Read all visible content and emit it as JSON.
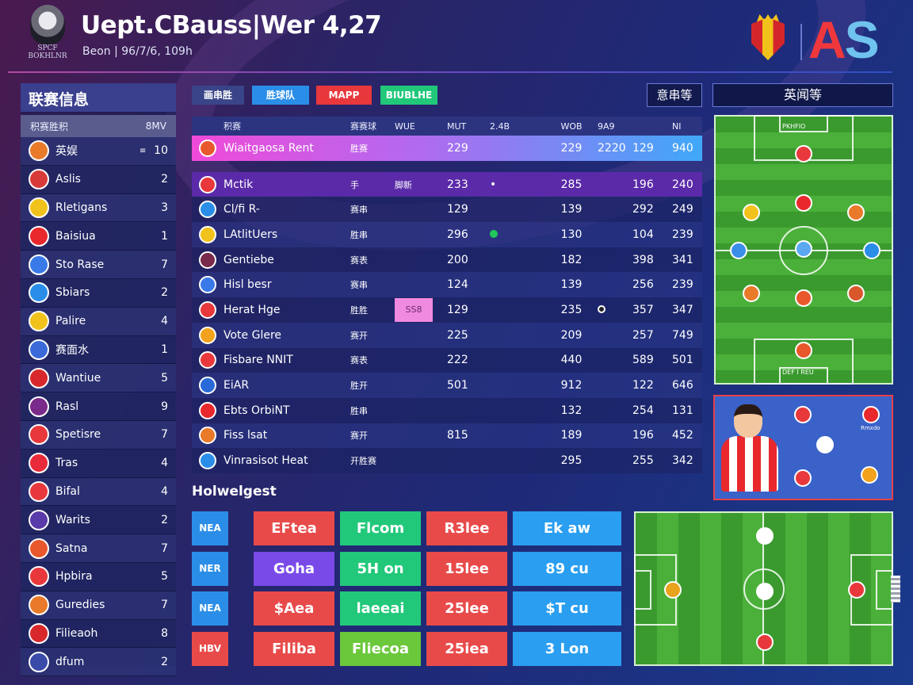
{
  "header": {
    "logo_caption_1": "SPCF",
    "logo_caption_2": "BOKHLNR",
    "title": "Uept.CBauss|Wer 4,27",
    "subtitle": "Beon | 96/7/6, 109h",
    "brand_a": "A",
    "brand_s": "S"
  },
  "left_panel": {
    "title": "联赛信息",
    "head_left": "积赛胜积",
    "head_right": "8MV",
    "rows": [
      {
        "name": "英娱",
        "mark": "≡",
        "pts": "10",
        "color": "#e87a2a"
      },
      {
        "name": "Aslis",
        "mark": "",
        "pts": "2",
        "color": "#d83a3a"
      },
      {
        "name": "Rletigans",
        "mark": "",
        "pts": "3",
        "color": "#f2c21c"
      },
      {
        "name": "Baisiua",
        "mark": "",
        "pts": "1",
        "color": "#e8282c"
      },
      {
        "name": "Sto Rase",
        "mark": "",
        "pts": "7",
        "color": "#3a7ae8"
      },
      {
        "name": "Sbiars",
        "mark": "",
        "pts": "2",
        "color": "#2a8ee8"
      },
      {
        "name": "Palire",
        "mark": "",
        "pts": "4",
        "color": "#f2c21c"
      },
      {
        "name": "赛面水",
        "mark": "",
        "pts": "1",
        "color": "#3a6ad8"
      },
      {
        "name": "Wantiue",
        "mark": "",
        "pts": "5",
        "color": "#d8282c"
      },
      {
        "name": "Rasl",
        "mark": "",
        "pts": "9",
        "color": "#7a2a8a"
      },
      {
        "name": "Spetisre",
        "mark": "",
        "pts": "7",
        "color": "#e8383c"
      },
      {
        "name": "Tras",
        "mark": "",
        "pts": "4",
        "color": "#e82a3a"
      },
      {
        "name": "Bifal",
        "mark": "",
        "pts": "4",
        "color": "#e8383c"
      },
      {
        "name": "Warits",
        "mark": "",
        "pts": "2",
        "color": "#5a3aa8"
      },
      {
        "name": "Satna",
        "mark": "",
        "pts": "7",
        "color": "#e8582c"
      },
      {
        "name": "Hpbira",
        "mark": "",
        "pts": "5",
        "color": "#e8383c"
      },
      {
        "name": "Guredies",
        "mark": "",
        "pts": "7",
        "color": "#e87a2a"
      },
      {
        "name": "Filieaoh",
        "mark": "",
        "pts": "8",
        "color": "#d8282c"
      },
      {
        "name": "dfum",
        "mark": "",
        "pts": "2",
        "color": "#3a4aa8"
      }
    ]
  },
  "tabs": {
    "t1": "画串胜",
    "t2": "胜球队",
    "t3": "MAPP",
    "t4": "BIUBLHE",
    "right": "意串等",
    "panel_title": "英闻等"
  },
  "table": {
    "headers": [
      "积赛",
      "赛赛球",
      "WUE",
      "MUT",
      "2.4B",
      "WOB",
      "9A9",
      "",
      "NI"
    ],
    "rows": [
      {
        "name": "Wiaitgaosa Rent",
        "a": "胜赛",
        "b": "",
        "c": "229",
        "d": "",
        "e": "229",
        "f": "2220",
        "g": "129",
        "h": "940",
        "color": "#e8582c",
        "style": "hl"
      },
      {
        "name": "Mctik",
        "a": "手",
        "b": "脚新",
        "c": "233",
        "d": "•",
        "e": "285",
        "f": "",
        "g": "196",
        "h": "240",
        "color": "#e8383c",
        "style": "hl2"
      },
      {
        "name": "Cl/fi R-",
        "a": "赛串",
        "b": "",
        "c": "129",
        "d": "",
        "e": "139",
        "f": "",
        "g": "292",
        "h": "249",
        "color": "#2a8ee8",
        "style": ""
      },
      {
        "name": "LAtlitUers",
        "a": "胜串",
        "b": "",
        "c": "296",
        "d": "green",
        "e": "130",
        "f": "",
        "g": "104",
        "h": "239",
        "color": "#f2c21c",
        "style": ""
      },
      {
        "name": "Gentiebe",
        "a": "赛表",
        "b": "",
        "c": "200",
        "d": "",
        "e": "182",
        "f": "",
        "g": "398",
        "h": "341",
        "color": "#7a2a4a",
        "style": ""
      },
      {
        "name": "Hisl besr",
        "a": "赛串",
        "b": "",
        "c": "124",
        "d": "",
        "e": "139",
        "f": "",
        "g": "256",
        "h": "239",
        "color": "#3a7ae8",
        "style": ""
      },
      {
        "name": "Herat Hge",
        "a": "胜胜",
        "b": "chip",
        "c": "129",
        "d": "",
        "e": "235",
        "f": "dot",
        "g": "357",
        "h": "347",
        "color": "#e8383c",
        "style": ""
      },
      {
        "name": "Vote Glere",
        "a": "赛开",
        "b": "",
        "c": "225",
        "d": "",
        "e": "209",
        "f": "",
        "g": "257",
        "h": "749",
        "color": "#f2a21c",
        "style": ""
      },
      {
        "name": "Fisbare NNIT",
        "a": "赛表",
        "b": "",
        "c": "222",
        "d": "",
        "e": "440",
        "f": "",
        "g": "589",
        "h": "501",
        "color": "#e8383c",
        "style": ""
      },
      {
        "name": "EiAR",
        "a": "胜开",
        "b": "",
        "c": "501",
        "d": "",
        "e": "912",
        "f": "",
        "g": "122",
        "h": "646",
        "color": "#2a6ad8",
        "style": ""
      },
      {
        "name": "Ebts OrbiNT",
        "a": "胜串",
        "b": "",
        "c": "",
        "d": "",
        "e": "132",
        "f": "",
        "g": "254",
        "h": "131",
        "color": "#e8282c",
        "style": ""
      },
      {
        "name": "Fiss lsat",
        "a": "赛开",
        "b": "",
        "c": "815",
        "d": "",
        "e": "189",
        "f": "",
        "g": "196",
        "h": "452",
        "color": "#e87a2a",
        "style": ""
      },
      {
        "name": "Vinrasisot Heat",
        "a": "开胜赛",
        "b": "",
        "c": "",
        "d": "",
        "e": "295",
        "f": "",
        "g": "255",
        "h": "342",
        "color": "#2a8ee8",
        "style": ""
      }
    ],
    "chip_label": "SS8"
  },
  "highlights": {
    "title": "Holwelgest",
    "rows": [
      {
        "label": "NEA",
        "label_color": "#2a8ee8",
        "cells": [
          {
            "text": "EFtea",
            "color": "#e84a4a"
          },
          {
            "text": "Flcom",
            "color": "#22c87a"
          },
          {
            "text": "R3lee",
            "color": "#e84a4a"
          },
          {
            "text": "Ek aw",
            "color": "#2a9ef0"
          }
        ]
      },
      {
        "label": "NER",
        "label_color": "#2a8ee8",
        "cells": [
          {
            "text": "Goha",
            "color": "#7a4ae8"
          },
          {
            "text": "5H on",
            "color": "#22c87a"
          },
          {
            "text": "15lee",
            "color": "#e84a4a"
          },
          {
            "text": "89 cu",
            "color": "#2a9ef0"
          }
        ]
      },
      {
        "label": "NEA",
        "label_color": "#2a8ee8",
        "cells": [
          {
            "text": "$Aea",
            "color": "#e84a4a"
          },
          {
            "text": "laeeai",
            "color": "#22c87a"
          },
          {
            "text": "25lee",
            "color": "#e84a4a"
          },
          {
            "text": "$T cu",
            "color": "#2a9ef0"
          }
        ]
      },
      {
        "label": "HBV",
        "label_color": "#e84a4a",
        "cells": [
          {
            "text": "Filiba",
            "color": "#e84a4a"
          },
          {
            "text": "Fliecoa",
            "color": "#6ac83a"
          },
          {
            "text": "25iea",
            "color": "#e84a4a"
          },
          {
            "text": "3 Lon",
            "color": "#2a9ef0"
          }
        ]
      }
    ]
  },
  "pitch": {
    "top_label": "PKHFIO",
    "bottom_label": "DEF I REU"
  },
  "avatar_card": {
    "caption": "Rmxdo"
  }
}
